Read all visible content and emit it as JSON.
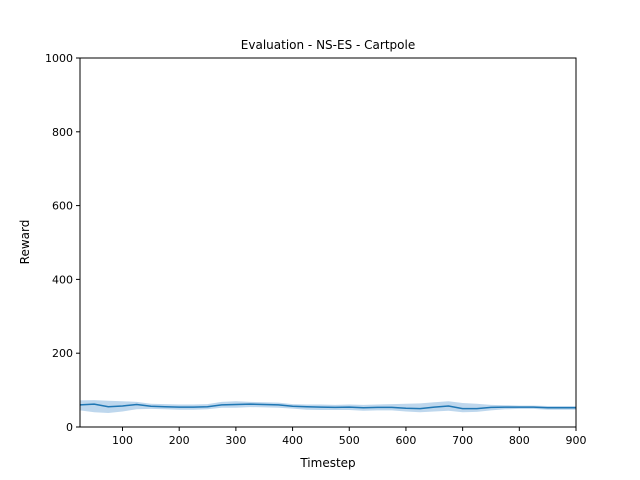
{
  "chart_data": {
    "type": "line",
    "title": "Evaluation - NS-ES - Cartpole",
    "xlabel": "Timestep",
    "ylabel": "Reward",
    "xlim": [
      25,
      900
    ],
    "ylim": [
      0,
      1000
    ],
    "xticks": [
      100,
      200,
      300,
      400,
      500,
      600,
      700,
      800,
      900
    ],
    "yticks": [
      0,
      200,
      400,
      600,
      800,
      1000
    ],
    "grid": false,
    "series": [
      {
        "color": "#1f77b4",
        "band_color": "#aecde8",
        "x": [
          25,
          50,
          75,
          100,
          125,
          150,
          175,
          200,
          225,
          250,
          275,
          300,
          325,
          350,
          375,
          400,
          425,
          450,
          475,
          500,
          525,
          550,
          575,
          600,
          625,
          650,
          675,
          700,
          725,
          750,
          775,
          800,
          825,
          850,
          875,
          900
        ],
        "mean": [
          60,
          62,
          55,
          57,
          61,
          56,
          55,
          54,
          54,
          55,
          60,
          61,
          62,
          61,
          60,
          56,
          55,
          54,
          53,
          54,
          52,
          53,
          53,
          51,
          50,
          54,
          57,
          50,
          50,
          53,
          54,
          54,
          54,
          52,
          52,
          52
        ],
        "upper": [
          72,
          73,
          71,
          70,
          68,
          63,
          62,
          61,
          61,
          62,
          68,
          70,
          68,
          67,
          66,
          62,
          61,
          61,
          60,
          61,
          60,
          61,
          62,
          63,
          64,
          67,
          70,
          65,
          63,
          60,
          59,
          58,
          58,
          57,
          57,
          57
        ],
        "lower": [
          45,
          40,
          38,
          42,
          48,
          49,
          48,
          47,
          47,
          48,
          52,
          52,
          54,
          53,
          52,
          50,
          47,
          46,
          46,
          46,
          44,
          45,
          45,
          42,
          40,
          42,
          44,
          40,
          41,
          45,
          48,
          49,
          49,
          47,
          47,
          47
        ]
      }
    ]
  }
}
